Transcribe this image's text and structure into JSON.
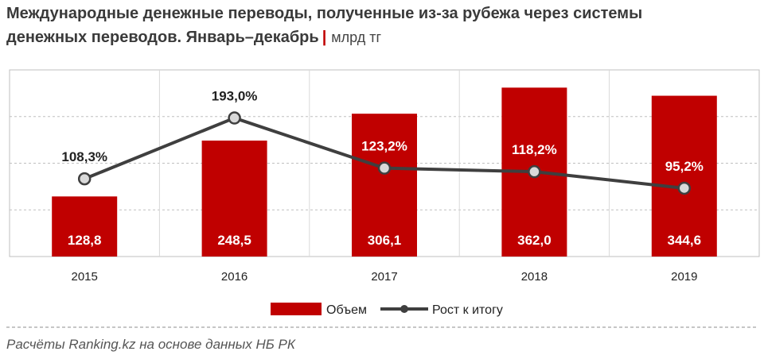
{
  "title": {
    "line1": "Международные денежные переводы, полученные из-за рубежа через системы",
    "line2": "денежных переводов. Январь–декабрь",
    "unit": "млрд тг"
  },
  "colors": {
    "bar": "#c00000",
    "line": "#3f3f3f",
    "marker_fill": "#d9d9d9",
    "grid": "#bfbfbf"
  },
  "chart_data": {
    "type": "bar",
    "categories": [
      "2015",
      "2016",
      "2017",
      "2018",
      "2019"
    ],
    "series": [
      {
        "name": "Объем",
        "type": "bar",
        "values": [
          128.8,
          248.5,
          306.1,
          362.0,
          344.6
        ],
        "labels": [
          "128,8",
          "248,5",
          "306,1",
          "362,0",
          "344,6"
        ]
      },
      {
        "name": "Рост к итогу",
        "type": "line",
        "values": [
          108.3,
          193.0,
          123.2,
          118.2,
          95.2
        ],
        "labels": [
          "108,3%",
          "193,0%",
          "123,2%",
          "118,2%",
          "95,2%"
        ]
      }
    ],
    "ylim": [
      0,
      400
    ],
    "ylim_secondary": [
      0,
      260
    ],
    "grid": true,
    "legend": "bottom"
  },
  "source": "Расчёты Ranking.kz на основе данных НБ РК"
}
